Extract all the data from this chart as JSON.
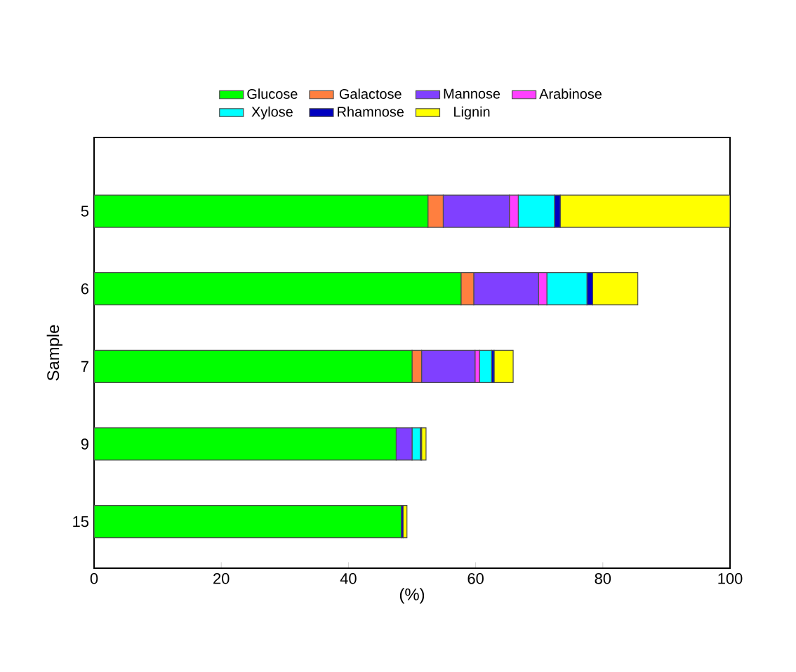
{
  "chart_data": {
    "type": "bar",
    "orientation": "horizontal",
    "stacked": true,
    "categories": [
      "5",
      "6",
      "7",
      "9",
      "15"
    ],
    "series": [
      {
        "name": "Glucose",
        "color": "#00ff00",
        "values": [
          52.5,
          57.7,
          50.0,
          47.5,
          48.3
        ]
      },
      {
        "name": "Galactose",
        "color": "#ff7f3f",
        "values": [
          2.4,
          2.0,
          1.5,
          0,
          0
        ]
      },
      {
        "name": "Mannose",
        "color": "#8040ff",
        "values": [
          10.4,
          10.2,
          8.4,
          2.5,
          0
        ]
      },
      {
        "name": "Arabinose",
        "color": "#ff40ff",
        "values": [
          1.4,
          1.3,
          0.7,
          0,
          0
        ]
      },
      {
        "name": "Xylose",
        "color": "#00ffff",
        "values": [
          5.7,
          6.3,
          1.9,
          1.3,
          0
        ]
      },
      {
        "name": "Rhamnose",
        "color": "#0000c0",
        "values": [
          0.9,
          0.9,
          0.4,
          0.2,
          0.3
        ]
      },
      {
        "name": "Lignin",
        "color": "#ffff00",
        "values": [
          26.7,
          7.1,
          3.0,
          0.7,
          0.6
        ]
      }
    ],
    "xlabel": "(%)",
    "ylabel": "Sample",
    "xlim": [
      0,
      100
    ],
    "xticks": [
      0,
      20,
      40,
      60,
      80,
      100
    ],
    "grid": false,
    "legend": "top"
  }
}
